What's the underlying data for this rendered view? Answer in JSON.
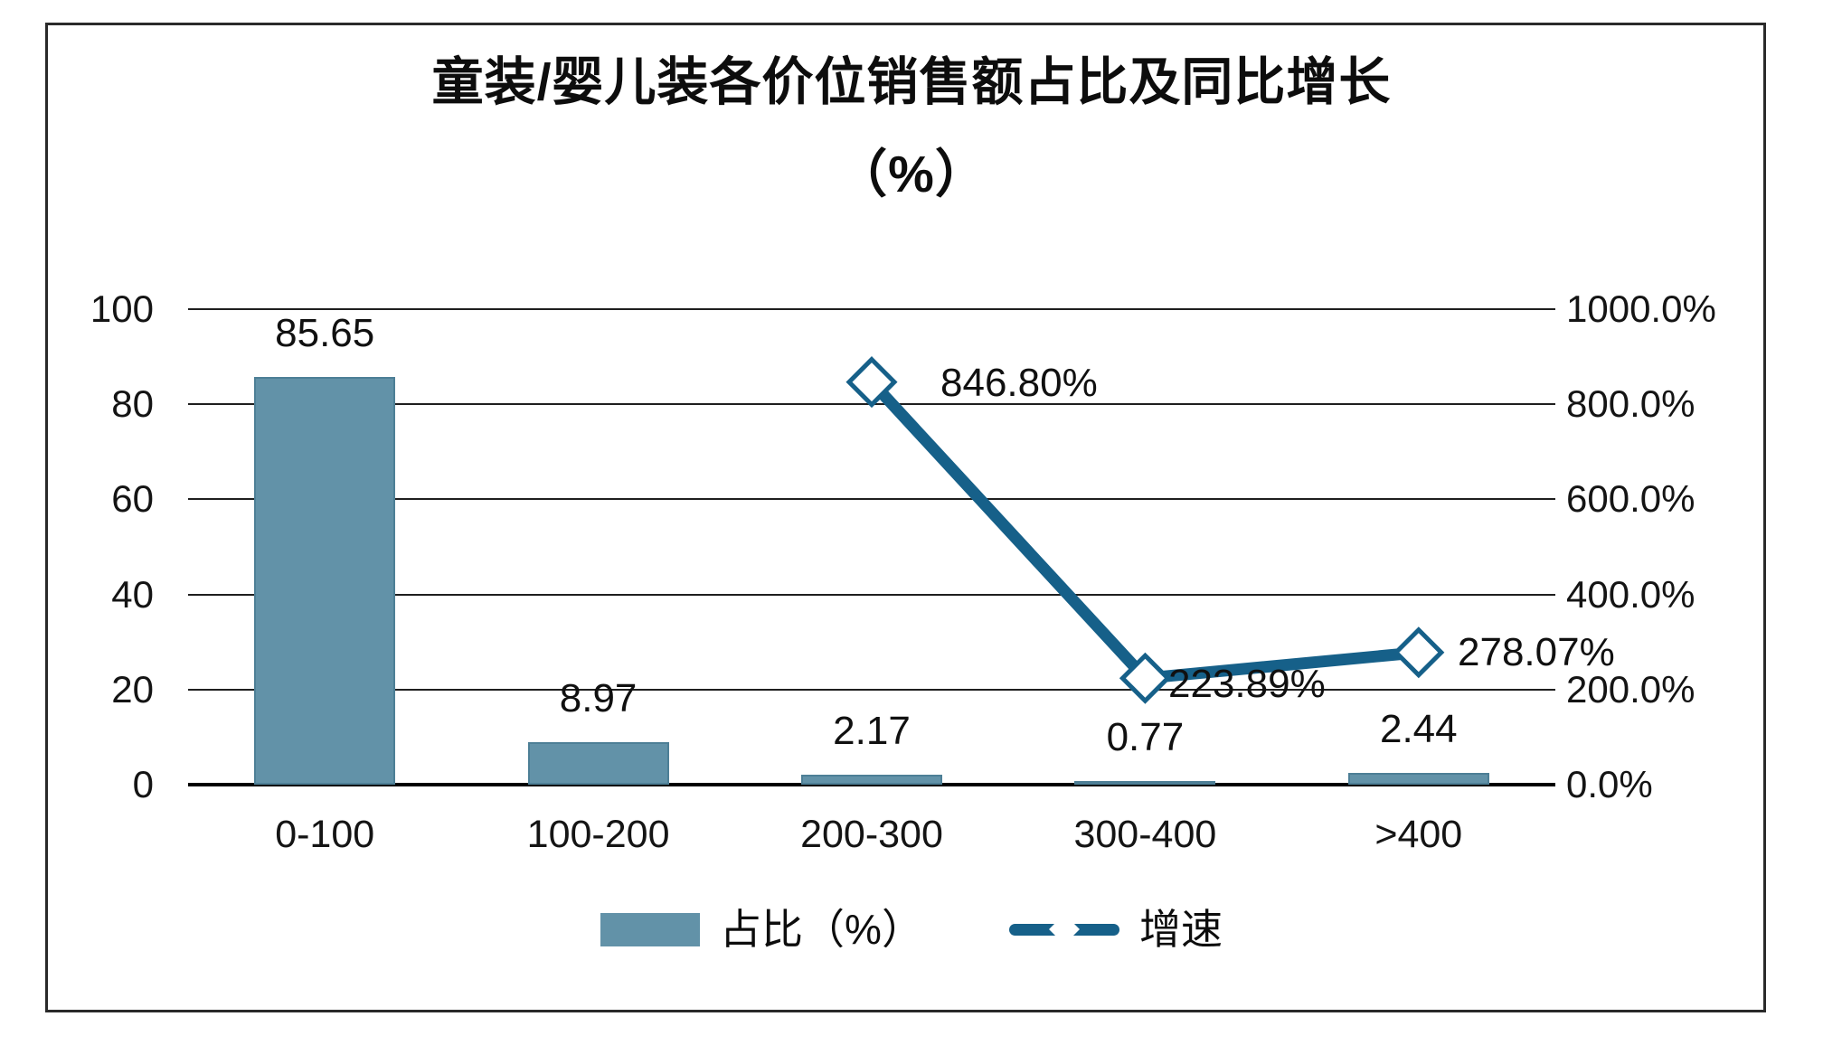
{
  "title": {
    "line1": "童装/婴儿装各价位销售额占比及同比增长",
    "line2": "（%）"
  },
  "chart_data": {
    "type": "bar+line",
    "categories": [
      "0-100",
      "100-200",
      "200-300",
      "300-400",
      ">400"
    ],
    "series": [
      {
        "name": "占比（%）",
        "type": "bar",
        "axis": "left",
        "values": [
          85.65,
          8.97,
          2.17,
          0.77,
          2.44
        ],
        "labels": [
          "85.65",
          "8.97",
          "2.17",
          "0.77",
          "2.44"
        ]
      },
      {
        "name": "增速",
        "type": "line",
        "axis": "right",
        "marker": "diamond",
        "values": [
          null,
          null,
          846.8,
          223.89,
          278.07
        ],
        "labels": [
          "",
          "",
          "846.80%",
          "223.89%",
          "278.07%"
        ]
      }
    ],
    "left_axis": {
      "min": 0,
      "max": 100,
      "ticks": [
        "100",
        "80",
        "60",
        "40",
        "20",
        "0"
      ]
    },
    "right_axis": {
      "min": 0,
      "max": 1000,
      "ticks": [
        "1000.0%",
        "800.0%",
        "600.0%",
        "400.0%",
        "200.0%",
        "0.0%"
      ]
    },
    "grid": true,
    "legend_position": "bottom"
  },
  "legend": {
    "bar_label": "占比（%）",
    "line_label": "增速"
  },
  "colors": {
    "bar_fill": "#6292a8",
    "bar_border": "#4d7f96",
    "line": "#166089",
    "marker_fill": "#ffffff",
    "grid": "#1f1f1f",
    "axis": "#000000",
    "text": "#101010",
    "frame": "#2a2a2a",
    "background": "#ffffff"
  }
}
